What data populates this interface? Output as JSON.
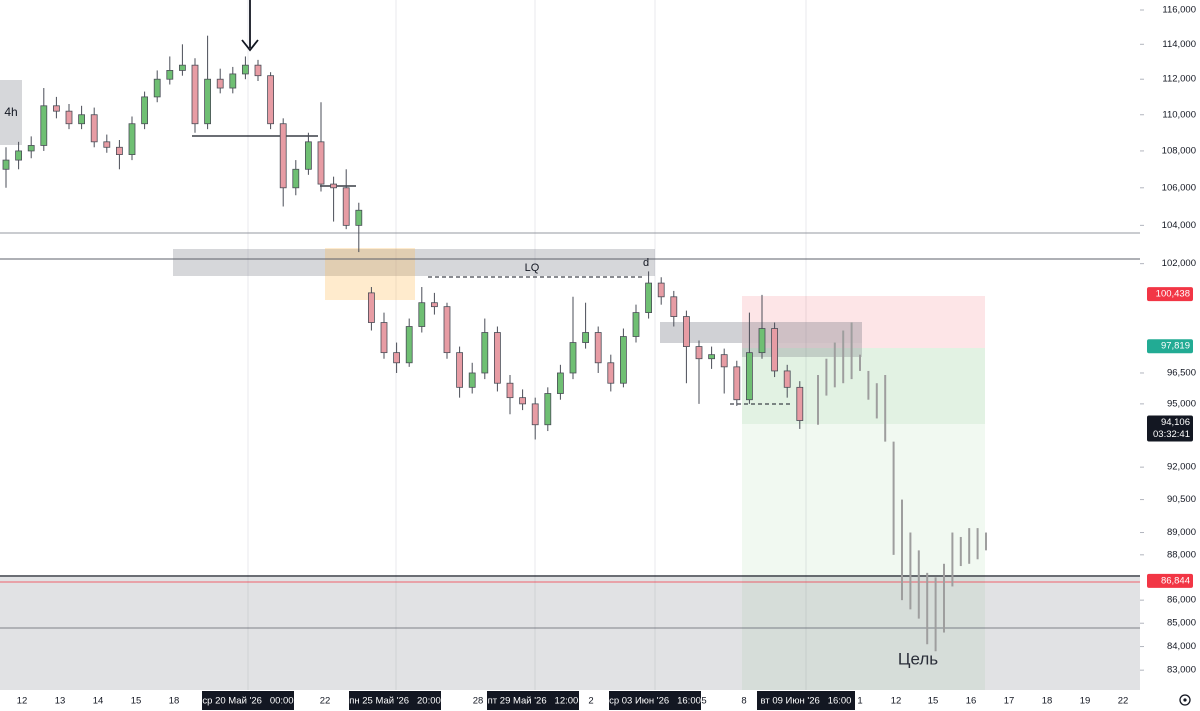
{
  "chart_data": {
    "type": "candlestick",
    "timeframe": "4h",
    "y_scale": "log",
    "ylim": [
      82170,
      116590
    ],
    "yticks": [
      {
        "value": 116000,
        "label": "116,000"
      },
      {
        "value": 114000,
        "label": "114,000"
      },
      {
        "value": 112000,
        "label": "112,000"
      },
      {
        "value": 110000,
        "label": "110,000"
      },
      {
        "value": 108000,
        "label": "108,000"
      },
      {
        "value": 106000,
        "label": "106,000"
      },
      {
        "value": 104000,
        "label": "104,000"
      },
      {
        "value": 102000,
        "label": "102,000"
      },
      {
        "value": 96500,
        "label": "96,500"
      },
      {
        "value": 95000,
        "label": "95,000"
      },
      {
        "value": 92000,
        "label": "92,000"
      },
      {
        "value": 90500,
        "label": "90,500"
      },
      {
        "value": 89000,
        "label": "89,000"
      },
      {
        "value": 88000,
        "label": "88,000"
      },
      {
        "value": 86000,
        "label": "86,000"
      },
      {
        "value": 85000,
        "label": "85,000"
      },
      {
        "value": 84000,
        "label": "84,000"
      },
      {
        "value": 83000,
        "label": "83,000"
      }
    ],
    "x_labels": [
      "12",
      "13",
      "14",
      "15",
      "18",
      "ср 20 Май '26   00:00",
      "22",
      "пн 25 Май '26   20:00",
      "28",
      "пт 29 Май '26   12:00",
      "2",
      "ср 03 Июн '26   16:00",
      "5",
      "8",
      "вт 09 Июн '26   16:00",
      "1",
      "12",
      "15",
      "16",
      "17",
      "18",
      "19",
      "22"
    ],
    "up_color": "#6fbf73",
    "down_color": "#e79ca4",
    "candles": {
      "open": [
        107000,
        107500,
        108000,
        108300,
        110500,
        110200,
        109500,
        110000,
        108500,
        108200,
        107800,
        109500,
        111000,
        112000,
        112500,
        112800,
        109500,
        112000,
        111500,
        112300,
        112800,
        112200,
        109500,
        106000,
        107000,
        108500,
        106200,
        106000,
        104000,
        100500,
        99000,
        97500,
        97000,
        98800,
        100000,
        99800,
        97500,
        95800,
        96500,
        98500,
        96000,
        95300,
        95000,
        94000,
        95500,
        96500,
        98000,
        98500,
        97000,
        96000,
        98300,
        99500,
        101000,
        100300,
        99300,
        97800,
        97200,
        97400,
        96800,
        95200,
        97500,
        98700,
        96600,
        95800
      ],
      "high": [
        108200,
        108500,
        108800,
        111500,
        111000,
        110600,
        110500,
        110400,
        108900,
        108600,
        109900,
        111300,
        112500,
        113300,
        114000,
        113200,
        114500,
        112600,
        112700,
        113300,
        113100,
        112400,
        109800,
        107500,
        109000,
        110700,
        106600,
        107000,
        105200,
        100800,
        99500,
        98000,
        99200,
        100800,
        100500,
        100000,
        97800,
        97000,
        99200,
        98800,
        96400,
        95700,
        95300,
        95800,
        96900,
        100300,
        100000,
        98800,
        97400,
        98700,
        99900,
        101600,
        101300,
        100600,
        99600,
        98100,
        97800,
        97700,
        97100,
        99500,
        100400,
        99000,
        96900,
        96100
      ],
      "low": [
        106000,
        107000,
        107600,
        108000,
        109800,
        109200,
        109200,
        108200,
        107900,
        107000,
        107500,
        109200,
        110700,
        111700,
        112200,
        109000,
        109200,
        111200,
        111200,
        112000,
        111900,
        109200,
        105000,
        105600,
        106700,
        105800,
        104200,
        103800,
        102600,
        98600,
        97200,
        96500,
        96800,
        98500,
        99400,
        97200,
        95300,
        95500,
        96200,
        95600,
        94500,
        94700,
        93300,
        93700,
        95200,
        96200,
        97700,
        96500,
        95600,
        95800,
        98000,
        99200,
        99900,
        98800,
        96000,
        95000,
        96700,
        95500,
        94900,
        95000,
        97200,
        96300,
        95300,
        93800
      ],
      "close": [
        107500,
        108000,
        108300,
        110500,
        110200,
        109500,
        110000,
        108500,
        108200,
        107800,
        109500,
        111000,
        112000,
        112500,
        112800,
        109500,
        112000,
        111500,
        112300,
        112800,
        112200,
        109500,
        106000,
        107000,
        108500,
        106200,
        106000,
        104000,
        104800,
        99000,
        97500,
        97000,
        98800,
        100000,
        99800,
        97500,
        95800,
        96500,
        98500,
        96000,
        95300,
        95000,
        94000,
        95500,
        96500,
        98000,
        98500,
        97000,
        96000,
        98300,
        99500,
        101000,
        100300,
        99300,
        97800,
        97200,
        97400,
        96800,
        95200,
        97500,
        98700,
        96600,
        95800,
        94200
      ]
    },
    "projection": {
      "color": "#9e9e9e",
      "low": [
        94000,
        95400,
        95800,
        96000,
        96200,
        96600,
        95200,
        94300,
        93200,
        88000,
        86000,
        85600,
        85200,
        84100,
        83800,
        84600,
        86600,
        87500,
        87600,
        87800,
        88200
      ],
      "high": [
        96400,
        97200,
        98000,
        98600,
        99000,
        97400,
        96600,
        96000,
        96400,
        93200,
        90500,
        89000,
        88200,
        87200,
        87000,
        87600,
        89000,
        88800,
        89200,
        89200,
        89000
      ]
    },
    "price_tags": [
      {
        "value": 100438,
        "label": "100,438",
        "color": "#f23645"
      },
      {
        "value": 97819,
        "label": "97,819",
        "color": "#22ab94"
      },
      {
        "value": 94106,
        "label": "94,106",
        "countdown": "03:32:41",
        "color": "#131722"
      },
      {
        "value": 86844,
        "label": "86,844",
        "color": "#f23645"
      }
    ],
    "annotations": {
      "lq": "LQ",
      "d": "d",
      "target": "Цель"
    }
  }
}
